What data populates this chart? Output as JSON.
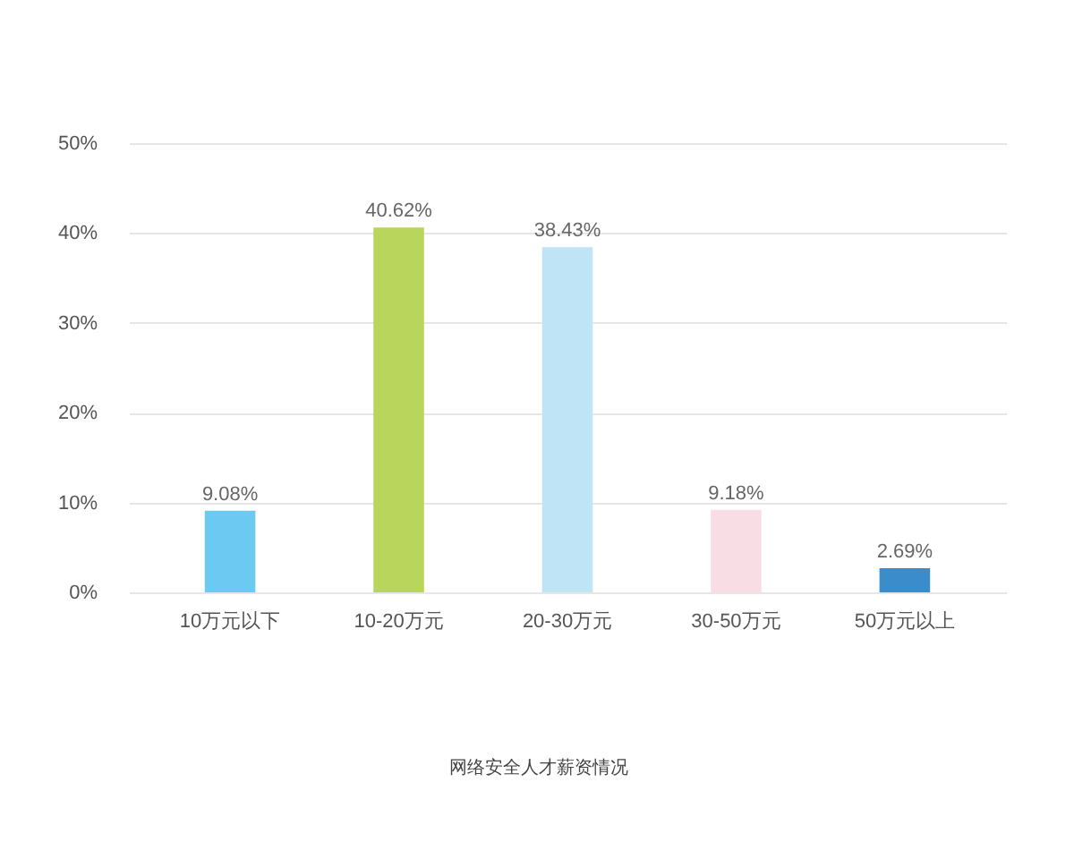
{
  "chart_data": {
    "type": "bar",
    "annotations": [
      "网络安全人才薪资情况"
    ],
    "categories": [
      "10万元以下",
      "10-20万元",
      "20-30万元",
      "30-50万元",
      "50万元以上"
    ],
    "values": [
      9.08,
      40.62,
      38.43,
      9.18,
      2.69
    ],
    "colors": [
      "#6cc9f2",
      "#b9d55b",
      "#bfe4f6",
      "#f9dde4",
      "#3a8ccb"
    ],
    "value_labels": [
      "9.08%",
      "40.62%",
      "38.43%",
      "9.18%",
      "2.69%"
    ],
    "ylim": [
      0,
      50
    ],
    "yticks": [
      {
        "value": 0,
        "label": "0%"
      },
      {
        "value": 10,
        "label": "10%"
      },
      {
        "value": 20,
        "label": "20%"
      },
      {
        "value": 30,
        "label": "30%"
      },
      {
        "value": 40,
        "label": "40%"
      },
      {
        "value": 50,
        "label": "50%"
      }
    ],
    "grid": "y"
  }
}
